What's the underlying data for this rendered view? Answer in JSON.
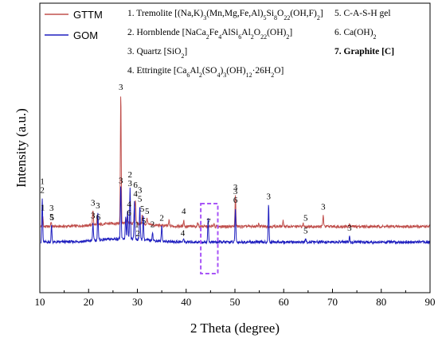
{
  "chart_data": {
    "type": "line",
    "xlabel": "2 Theta (degree)",
    "ylabel": "Intensity (a.u.)",
    "xlim": [
      10,
      90
    ],
    "xticks": [
      10,
      20,
      30,
      40,
      50,
      60,
      70,
      80,
      90
    ],
    "yticks_shown": false,
    "legend_position": "top-left",
    "series": [
      {
        "name": "GTTM",
        "color": "#c0504d",
        "baseline": 0.36,
        "peaks": [
          [
            10.6,
            0.18
          ],
          [
            12.3,
            0.08
          ],
          [
            20.9,
            0.27
          ],
          [
            21.8,
            0.16
          ],
          [
            26.6,
            2.35
          ],
          [
            27.9,
            0.12
          ],
          [
            29.6,
            0.42
          ],
          [
            29.4,
            0.26
          ],
          [
            31.0,
            0.16
          ],
          [
            32.0,
            0.12
          ],
          [
            36.5,
            0.1
          ],
          [
            39.5,
            0.12
          ],
          [
            42.4,
            0.08
          ],
          [
            45.7,
            0.06
          ],
          [
            50.1,
            0.55
          ],
          [
            54.9,
            0.06
          ],
          [
            59.9,
            0.1
          ],
          [
            64.0,
            0.05
          ],
          [
            68.1,
            0.2
          ],
          [
            73.5,
            0.04
          ]
        ]
      },
      {
        "name": "GOM",
        "color": "#1f1fbf",
        "baseline": 0.08,
        "peaks": [
          [
            10.5,
            0.78
          ],
          [
            12.4,
            0.3
          ],
          [
            20.9,
            0.32
          ],
          [
            21.9,
            0.5
          ],
          [
            26.6,
            0.95
          ],
          [
            27.6,
            0.4
          ],
          [
            28.0,
            0.52
          ],
          [
            28.5,
            0.9
          ],
          [
            29.4,
            0.68
          ],
          [
            30.5,
            0.62
          ],
          [
            31.2,
            0.45
          ],
          [
            33.1,
            0.16
          ],
          [
            35.0,
            0.28
          ],
          [
            39.5,
            0.06
          ],
          [
            44.5,
            0.42
          ],
          [
            50.1,
            0.6
          ],
          [
            56.9,
            0.66
          ],
          [
            64.5,
            0.05
          ],
          [
            73.5,
            0.1
          ]
        ]
      }
    ],
    "phase_legend": [
      {
        "num": "1.",
        "name": "Tremolite",
        "formula_parts": [
          {
            "t": "[(Na,K)"
          },
          {
            "sub": "3"
          },
          {
            "t": "(Mn,Mg,Fe,Al)"
          },
          {
            "sub": "5"
          },
          {
            "t": "Si"
          },
          {
            "sub": "8"
          },
          {
            "t": "O"
          },
          {
            "sub": "22"
          },
          {
            "t": "(OH,F)"
          },
          {
            "sub": "2"
          },
          {
            "t": "]"
          }
        ]
      },
      {
        "num": "2.",
        "name": "Hornblende",
        "formula_parts": [
          {
            "t": "[NaCa"
          },
          {
            "sub": "2"
          },
          {
            "t": "Fe"
          },
          {
            "sub": "4"
          },
          {
            "t": "AlSi"
          },
          {
            "sub": "6"
          },
          {
            "t": "Al"
          },
          {
            "sub": "2"
          },
          {
            "t": "O"
          },
          {
            "sub": "22"
          },
          {
            "t": "(OH)"
          },
          {
            "sub": "2"
          },
          {
            "t": "]"
          }
        ]
      },
      {
        "num": "3.",
        "name": "Quartz",
        "formula_parts": [
          {
            "t": "[SiO"
          },
          {
            "sub": "2"
          },
          {
            "t": "]"
          }
        ]
      },
      {
        "num": "4.",
        "name": "Ettringite",
        "formula_parts": [
          {
            "t": "[Ca"
          },
          {
            "sub": "6"
          },
          {
            "t": "Al"
          },
          {
            "sub": "2"
          },
          {
            "t": "(SO"
          },
          {
            "sub": "4"
          },
          {
            "t": ")"
          },
          {
            "sub": "3"
          },
          {
            "t": "(OH)"
          },
          {
            "sub": "12"
          },
          {
            "t": "·26H"
          },
          {
            "sub": "2"
          },
          {
            "t": "O]"
          }
        ]
      },
      {
        "num": "5.",
        "name": "C-A-S-H gel",
        "formula_parts": []
      },
      {
        "num": "6.",
        "name": "Ca(OH)",
        "formula_parts": [
          {
            "sub": "2"
          }
        ]
      },
      {
        "num": "7.",
        "name": "Graphite [C]",
        "formula_parts": [],
        "highlight_color": "#2222cc"
      }
    ],
    "peak_labels": {
      "GTTM": [
        {
          "x": 10.6,
          "text": "1"
        },
        {
          "x": 12.5,
          "text": "5"
        },
        {
          "x": 20.9,
          "text": "3"
        },
        {
          "x": 22.0,
          "text": "6"
        },
        {
          "x": 26.6,
          "text": "3"
        },
        {
          "x": 29.6,
          "text": "4"
        },
        {
          "x": 29.6,
          "text": "6"
        },
        {
          "x": 31.0,
          "text": "5"
        },
        {
          "x": 32.0,
          "text": "5"
        },
        {
          "x": 39.5,
          "text": "4"
        },
        {
          "x": 50.1,
          "text": "3"
        },
        {
          "x": 64.5,
          "text": "5"
        },
        {
          "x": 68.1,
          "text": "3"
        }
      ],
      "GOM": [
        {
          "x": 10.5,
          "text": "2"
        },
        {
          "x": 10.5,
          "text": "1"
        },
        {
          "x": 12.4,
          "text": "5"
        },
        {
          "x": 12.4,
          "text": "3"
        },
        {
          "x": 20.9,
          "text": "3"
        },
        {
          "x": 21.9,
          "text": "3"
        },
        {
          "x": 26.6,
          "text": "3"
        },
        {
          "x": 28.5,
          "text": "3"
        },
        {
          "x": 28.5,
          "text": "2"
        },
        {
          "x": 28.3,
          "text": "6"
        },
        {
          "x": 28.3,
          "text": "4"
        },
        {
          "x": 30.5,
          "text": "5"
        },
        {
          "x": 30.5,
          "text": "3"
        },
        {
          "x": 30.1,
          "text": "2"
        },
        {
          "x": 29.9,
          "text": "1"
        },
        {
          "x": 31.3,
          "text": "5"
        },
        {
          "x": 33.1,
          "text": "2"
        },
        {
          "x": 35.0,
          "text": "2"
        },
        {
          "x": 39.3,
          "text": "4"
        },
        {
          "x": 44.6,
          "text": "7"
        },
        {
          "x": 50.1,
          "text": "6"
        },
        {
          "x": 50.1,
          "text": "3"
        },
        {
          "x": 56.9,
          "text": "3"
        },
        {
          "x": 64.5,
          "text": "5"
        },
        {
          "x": 73.5,
          "text": "3"
        }
      ]
    },
    "highlight_box_x_range": [
      43.0,
      46.5
    ],
    "highlight_box_color": "#a855f7"
  }
}
